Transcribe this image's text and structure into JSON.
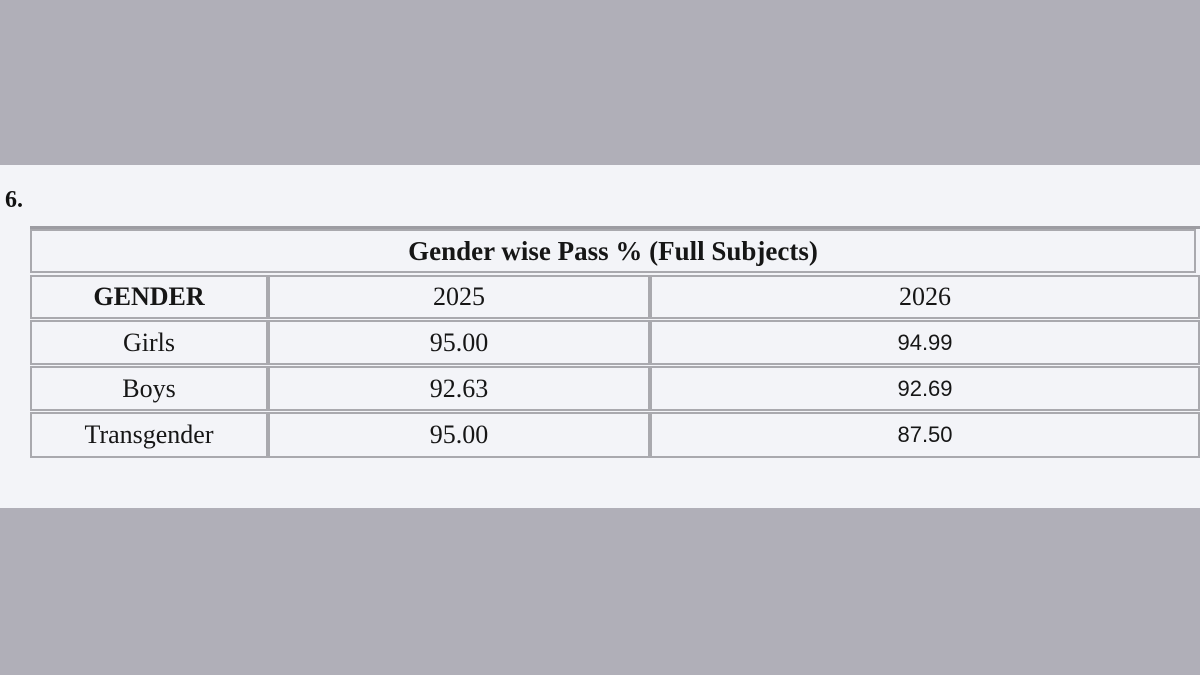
{
  "section_number": "6.",
  "table": {
    "title": "Gender wise Pass % (Full Subjects)",
    "header": [
      "GENDER",
      "2025",
      "2026"
    ],
    "rows": [
      [
        "Girls",
        "95.00",
        "94.99"
      ],
      [
        "Boys",
        "92.63",
        "92.69"
      ],
      [
        "Transgender",
        "95.00",
        "87.50"
      ]
    ]
  }
}
